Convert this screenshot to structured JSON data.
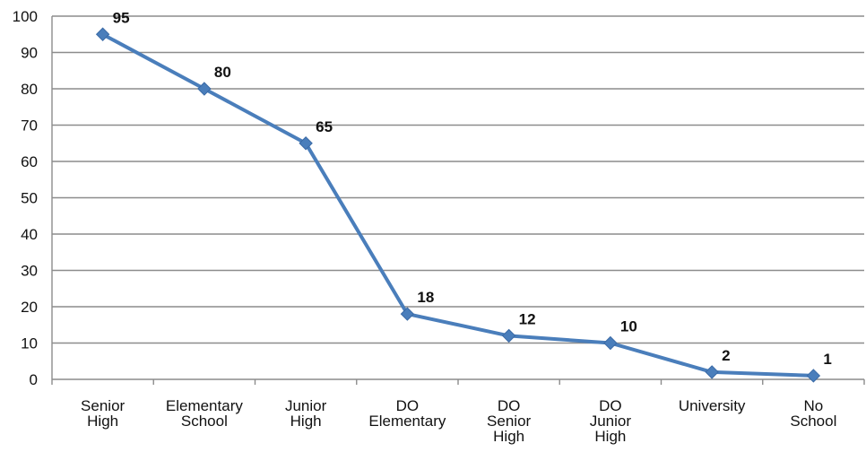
{
  "chart_data": {
    "type": "line",
    "categories": [
      [
        "Senior",
        "High"
      ],
      [
        "Elementary",
        "School"
      ],
      [
        "Junior",
        "High"
      ],
      [
        "DO",
        "Elementary"
      ],
      [
        "DO",
        "Senior",
        "High"
      ],
      [
        "DO",
        "Junior",
        "High"
      ],
      [
        "University"
      ],
      [
        "No",
        "School"
      ]
    ],
    "series": [
      {
        "values": [
          95,
          80,
          65,
          18,
          12,
          10,
          2,
          1
        ]
      }
    ],
    "data_labels": [
      "95",
      "80",
      "65",
      "18",
      "12",
      "10",
      "2",
      "1"
    ],
    "ylim": [
      0,
      100
    ],
    "yticks": [
      "0",
      "10",
      "20",
      "30",
      "40",
      "50",
      "60",
      "70",
      "80",
      "90",
      "100"
    ],
    "grid": true,
    "marker": "diamond",
    "colors": {
      "line": "#4a7ebb",
      "marker": "#4a7ebb",
      "grid": "#8c8c8c",
      "axis": "#8c8c8c"
    }
  }
}
